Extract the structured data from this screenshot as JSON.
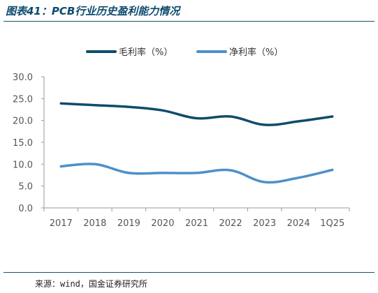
{
  "header": {
    "title": "图表41：PCB行业历史盈利能力情况"
  },
  "footer": {
    "source": "来源：wind，国金证券研究所"
  },
  "chart_data": {
    "type": "line",
    "title": "",
    "xlabel": "",
    "ylabel": "",
    "categories": [
      "2017",
      "2018",
      "2019",
      "2020",
      "2021",
      "2022",
      "2023",
      "2024",
      "1Q25"
    ],
    "series": [
      {
        "name": "毛利率（%）",
        "color": "#0f4c6b",
        "values": [
          23.9,
          23.5,
          23.1,
          22.3,
          20.5,
          20.9,
          19.0,
          19.8,
          20.9
        ]
      },
      {
        "name": "净利率（%）",
        "color": "#4d8fcc",
        "values": [
          9.5,
          10.0,
          8.0,
          8.0,
          8.0,
          8.6,
          5.9,
          6.9,
          8.7
        ]
      }
    ],
    "yticks": [
      "0.0",
      "5.0",
      "10.0",
      "15.0",
      "20.0",
      "25.0",
      "30.0"
    ],
    "ylim": [
      0,
      30
    ],
    "grid": false,
    "legend_position": "top-center"
  }
}
